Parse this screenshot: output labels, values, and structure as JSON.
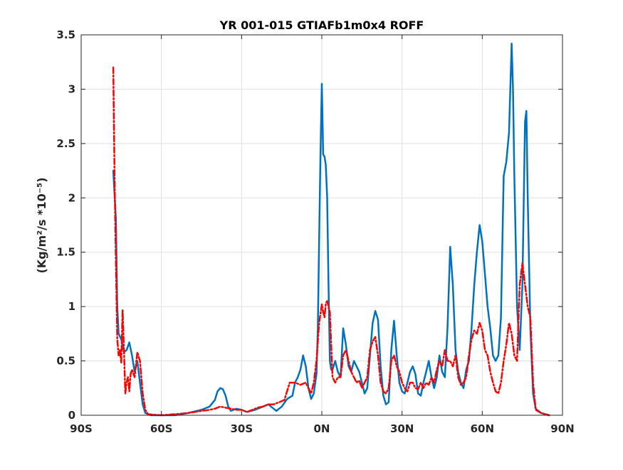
{
  "chart_data": {
    "type": "line",
    "title": "YR 001-015 GTIAFb1m0x4 ROFF",
    "xlabel": "",
    "ylabel": "(Kg/m²/s   *10⁻⁵)",
    "xlim": [
      -90,
      90
    ],
    "ylim": [
      0,
      3.5
    ],
    "grid": true,
    "x_ticks": [
      -90,
      -60,
      -30,
      0,
      30,
      60,
      90
    ],
    "x_tick_labels": [
      "90S",
      "60S",
      "30S",
      "0N",
      "30N",
      "60N",
      "90N"
    ],
    "y_ticks": [
      0,
      0.5,
      1,
      1.5,
      2,
      2.5,
      3,
      3.5
    ],
    "y_tick_labels": [
      "0",
      "0.5",
      "1",
      "1.5",
      "2",
      "2.5",
      "3",
      "3.5"
    ],
    "series": [
      {
        "color": "#0072bd",
        "style": "solid",
        "points": [
          [
            -78,
            2.25
          ],
          [
            -77,
            1.8
          ],
          [
            -76.5,
            1.0
          ],
          [
            -76,
            0.75
          ],
          [
            -75,
            0.7
          ],
          [
            -74,
            0.58
          ],
          [
            -73,
            0.6
          ],
          [
            -72,
            0.67
          ],
          [
            -71,
            0.55
          ],
          [
            -70,
            0.4
          ],
          [
            -69,
            0.5
          ],
          [
            -68,
            0.3
          ],
          [
            -67,
            0.1
          ],
          [
            -66,
            0.02
          ],
          [
            -64,
            0.0
          ],
          [
            -55,
            0.0
          ],
          [
            -50,
            0.02
          ],
          [
            -45,
            0.05
          ],
          [
            -42,
            0.08
          ],
          [
            -40,
            0.14
          ],
          [
            -39,
            0.22
          ],
          [
            -38,
            0.25
          ],
          [
            -37,
            0.24
          ],
          [
            -36,
            0.18
          ],
          [
            -35,
            0.08
          ],
          [
            -34,
            0.04
          ],
          [
            -32,
            0.06
          ],
          [
            -30,
            0.05
          ],
          [
            -28,
            0.03
          ],
          [
            -25,
            0.05
          ],
          [
            -22,
            0.08
          ],
          [
            -20,
            0.1
          ],
          [
            -19,
            0.08
          ],
          [
            -18,
            0.06
          ],
          [
            -17,
            0.04
          ],
          [
            -15,
            0.08
          ],
          [
            -13,
            0.15
          ],
          [
            -11,
            0.18
          ],
          [
            -10,
            0.3
          ],
          [
            -9,
            0.35
          ],
          [
            -8,
            0.42
          ],
          [
            -7,
            0.55
          ],
          [
            -6,
            0.45
          ],
          [
            -5,
            0.25
          ],
          [
            -4,
            0.15
          ],
          [
            -3,
            0.2
          ],
          [
            -2,
            0.38
          ],
          [
            -1.5,
            0.8
          ],
          [
            -1,
            1.6
          ],
          [
            -0.5,
            2.4
          ],
          [
            0,
            3.05
          ],
          [
            0.5,
            2.4
          ],
          [
            1,
            2.38
          ],
          [
            1.5,
            2.3
          ],
          [
            2,
            2.0
          ],
          [
            2.5,
            1.2
          ],
          [
            3,
            0.5
          ],
          [
            3.5,
            0.42
          ],
          [
            4,
            0.42
          ],
          [
            5,
            0.5
          ],
          [
            6,
            0.4
          ],
          [
            7,
            0.35
          ],
          [
            8,
            0.8
          ],
          [
            9,
            0.65
          ],
          [
            10,
            0.45
          ],
          [
            11,
            0.4
          ],
          [
            12,
            0.5
          ],
          [
            13,
            0.45
          ],
          [
            14,
            0.4
          ],
          [
            15,
            0.3
          ],
          [
            16,
            0.2
          ],
          [
            17,
            0.25
          ],
          [
            18,
            0.55
          ],
          [
            19,
            0.85
          ],
          [
            20,
            0.96
          ],
          [
            21,
            0.88
          ],
          [
            22,
            0.45
          ],
          [
            23,
            0.18
          ],
          [
            24,
            0.1
          ],
          [
            25,
            0.12
          ],
          [
            26,
            0.6
          ],
          [
            27,
            0.87
          ],
          [
            28,
            0.55
          ],
          [
            29,
            0.3
          ],
          [
            30,
            0.22
          ],
          [
            31,
            0.2
          ],
          [
            32,
            0.3
          ],
          [
            33,
            0.4
          ],
          [
            34,
            0.45
          ],
          [
            35,
            0.38
          ],
          [
            36,
            0.2
          ],
          [
            37,
            0.18
          ],
          [
            38,
            0.3
          ],
          [
            39,
            0.4
          ],
          [
            40,
            0.5
          ],
          [
            41,
            0.35
          ],
          [
            42,
            0.25
          ],
          [
            43,
            0.35
          ],
          [
            44,
            0.55
          ],
          [
            45,
            0.4
          ],
          [
            46,
            0.35
          ],
          [
            47,
            0.8
          ],
          [
            48,
            1.55
          ],
          [
            49,
            1.2
          ],
          [
            50,
            0.6
          ],
          [
            51,
            0.4
          ],
          [
            52,
            0.3
          ],
          [
            53,
            0.25
          ],
          [
            54,
            0.42
          ],
          [
            55,
            0.5
          ],
          [
            56,
            0.8
          ],
          [
            57,
            1.2
          ],
          [
            58,
            1.5
          ],
          [
            59,
            1.75
          ],
          [
            60,
            1.6
          ],
          [
            61,
            1.3
          ],
          [
            62,
            1.0
          ],
          [
            63,
            0.8
          ],
          [
            64,
            0.55
          ],
          [
            65,
            0.5
          ],
          [
            66,
            0.55
          ],
          [
            67,
            0.9
          ],
          [
            68,
            2.2
          ],
          [
            69,
            2.33
          ],
          [
            70,
            2.6
          ],
          [
            71,
            3.42
          ],
          [
            71.5,
            3.0
          ],
          [
            72,
            2.2
          ],
          [
            73,
            1.0
          ],
          [
            74,
            0.6
          ],
          [
            75,
            1.2
          ],
          [
            76,
            2.7
          ],
          [
            76.5,
            2.8
          ],
          [
            77,
            2.0
          ],
          [
            78,
            0.8
          ],
          [
            79,
            0.2
          ],
          [
            80,
            0.06
          ],
          [
            81,
            0.04
          ],
          [
            82,
            0.02
          ],
          [
            85,
            0.0
          ]
        ]
      },
      {
        "color": "#ff0000",
        "style": "dash-dot",
        "points": [
          [
            -78,
            3.2
          ],
          [
            -77.8,
            2.8
          ],
          [
            -77.5,
            2.2
          ],
          [
            -77,
            1.4
          ],
          [
            -76.5,
            0.7
          ],
          [
            -76,
            0.55
          ],
          [
            -75.5,
            0.6
          ],
          [
            -75,
            0.48
          ],
          [
            -74.5,
            0.97
          ],
          [
            -74,
            0.6
          ],
          [
            -73.5,
            0.2
          ],
          [
            -73,
            0.3
          ],
          [
            -72.5,
            0.35
          ],
          [
            -72,
            0.22
          ],
          [
            -71.5,
            0.38
          ],
          [
            -71,
            0.42
          ],
          [
            -70,
            0.35
          ],
          [
            -69,
            0.58
          ],
          [
            -68,
            0.5
          ],
          [
            -67,
            0.2
          ],
          [
            -66,
            0.05
          ],
          [
            -65,
            0.01
          ],
          [
            -60,
            0.0
          ],
          [
            -55,
            0.01
          ],
          [
            -50,
            0.02
          ],
          [
            -45,
            0.04
          ],
          [
            -42,
            0.05
          ],
          [
            -40,
            0.06
          ],
          [
            -38,
            0.08
          ],
          [
            -36,
            0.07
          ],
          [
            -34,
            0.06
          ],
          [
            -32,
            0.05
          ],
          [
            -30,
            0.05
          ],
          [
            -28,
            0.03
          ],
          [
            -26,
            0.05
          ],
          [
            -24,
            0.07
          ],
          [
            -22,
            0.08
          ],
          [
            -20,
            0.1
          ],
          [
            -18,
            0.1
          ],
          [
            -16,
            0.12
          ],
          [
            -14,
            0.14
          ],
          [
            -12,
            0.3
          ],
          [
            -10,
            0.3
          ],
          [
            -8,
            0.28
          ],
          [
            -6,
            0.3
          ],
          [
            -5,
            0.25
          ],
          [
            -4,
            0.2
          ],
          [
            -3,
            0.3
          ],
          [
            -2,
            0.5
          ],
          [
            -1,
            0.85
          ],
          [
            0,
            1.02
          ],
          [
            0.5,
            0.95
          ],
          [
            1,
            0.9
          ],
          [
            1.5,
            1.03
          ],
          [
            2,
            1.05
          ],
          [
            3,
            0.95
          ],
          [
            4,
            0.35
          ],
          [
            5,
            0.3
          ],
          [
            6,
            0.35
          ],
          [
            7,
            0.35
          ],
          [
            8,
            0.55
          ],
          [
            9,
            0.6
          ],
          [
            10,
            0.5
          ],
          [
            11,
            0.4
          ],
          [
            12,
            0.35
          ],
          [
            13,
            0.3
          ],
          [
            14,
            0.32
          ],
          [
            15,
            0.25
          ],
          [
            16,
            0.3
          ],
          [
            17,
            0.35
          ],
          [
            18,
            0.6
          ],
          [
            19,
            0.68
          ],
          [
            20,
            0.72
          ],
          [
            21,
            0.55
          ],
          [
            22,
            0.3
          ],
          [
            23,
            0.22
          ],
          [
            24,
            0.2
          ],
          [
            25,
            0.25
          ],
          [
            26,
            0.5
          ],
          [
            27,
            0.55
          ],
          [
            28,
            0.45
          ],
          [
            29,
            0.4
          ],
          [
            30,
            0.3
          ],
          [
            31,
            0.25
          ],
          [
            32,
            0.22
          ],
          [
            33,
            0.3
          ],
          [
            34,
            0.3
          ],
          [
            35,
            0.25
          ],
          [
            36,
            0.24
          ],
          [
            37,
            0.3
          ],
          [
            38,
            0.25
          ],
          [
            39,
            0.3
          ],
          [
            40,
            0.28
          ],
          [
            41,
            0.35
          ],
          [
            42,
            0.3
          ],
          [
            43,
            0.42
          ],
          [
            44,
            0.5
          ],
          [
            45,
            0.45
          ],
          [
            46,
            0.6
          ],
          [
            47,
            0.5
          ],
          [
            48,
            0.5
          ],
          [
            49,
            0.45
          ],
          [
            50,
            0.55
          ],
          [
            51,
            0.35
          ],
          [
            52,
            0.28
          ],
          [
            53,
            0.3
          ],
          [
            54,
            0.35
          ],
          [
            55,
            0.55
          ],
          [
            56,
            0.7
          ],
          [
            57,
            0.78
          ],
          [
            58,
            0.75
          ],
          [
            59,
            0.85
          ],
          [
            60,
            0.78
          ],
          [
            61,
            0.6
          ],
          [
            62,
            0.55
          ],
          [
            63,
            0.4
          ],
          [
            64,
            0.3
          ],
          [
            65,
            0.22
          ],
          [
            66,
            0.2
          ],
          [
            67,
            0.3
          ],
          [
            68,
            0.5
          ],
          [
            69,
            0.65
          ],
          [
            70,
            0.85
          ],
          [
            71,
            0.75
          ],
          [
            72,
            0.55
          ],
          [
            73,
            0.5
          ],
          [
            74,
            1.2
          ],
          [
            75,
            1.4
          ],
          [
            76,
            1.2
          ],
          [
            77,
            1.0
          ],
          [
            78,
            0.9
          ],
          [
            79,
            0.3
          ],
          [
            80,
            0.05
          ],
          [
            82,
            0.02
          ],
          [
            85,
            0.0
          ]
        ]
      }
    ]
  }
}
